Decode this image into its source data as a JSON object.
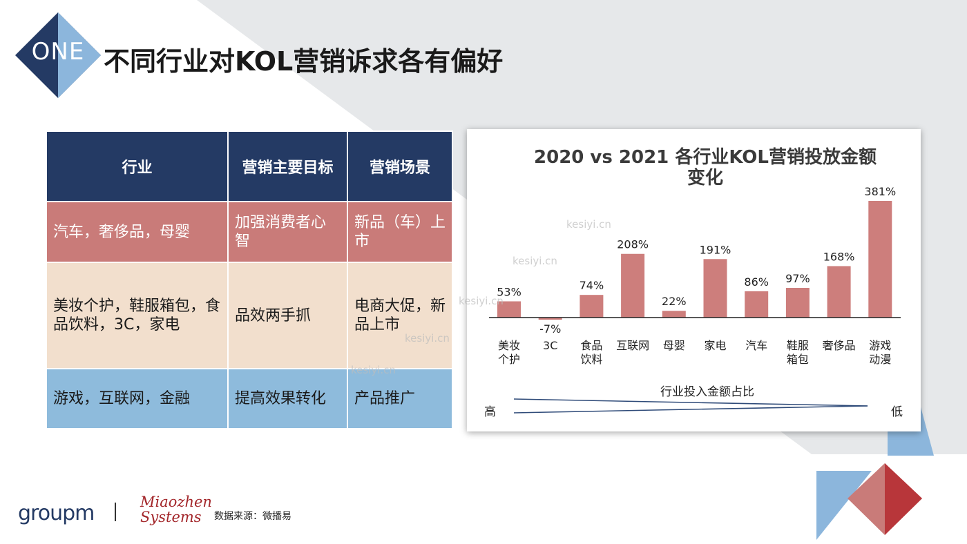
{
  "header": {
    "badge": "ONE",
    "title": "不同行业对KOL营销诉求各有偏好"
  },
  "table": {
    "headers": [
      "行业",
      "营销主要目标",
      "营销场景"
    ],
    "rows": [
      [
        "汽车，奢侈品，母婴",
        "加强消费者心智",
        "新品（车）上市"
      ],
      [
        "美妆个护，鞋服箱包，食品饮料，3C，家电",
        "品效两手抓",
        "电商大促，新品上市"
      ],
      [
        "游戏，互联网，金融",
        "提高效果转化",
        "产品推广"
      ]
    ]
  },
  "chart_data": {
    "type": "bar",
    "title": "2020 vs 2021 各行业KOL营销投放金额变化",
    "categories": [
      "美妆\n个护",
      "3C",
      "食品\n饮料",
      "互联网",
      "母婴",
      "家电",
      "汽车",
      "鞋服\n箱包",
      "奢侈品",
      "游戏\n动漫"
    ],
    "values": [
      53,
      -7,
      74,
      208,
      22,
      191,
      86,
      97,
      168,
      381
    ],
    "data_labels": [
      "53%",
      "-7%",
      "74%",
      "208%",
      "22%",
      "191%",
      "86%",
      "97%",
      "168%",
      "381%"
    ],
    "unit": "%",
    "ylim": [
      -10,
      381
    ],
    "bar_color": "#cd7e7c",
    "gridlines": false,
    "trend_label": "行业投入金额占比",
    "trend_high": "高",
    "trend_low": "低"
  },
  "footer": {
    "logo_groupm": "groupm",
    "logo_mz_line1": "Miaozhen",
    "logo_mz_line2": "Systems",
    "source": "数据来源：微播易"
  },
  "watermark": "kesiyi.cn",
  "colors": {
    "navy": "#243a64",
    "rose": "#c97b79",
    "peach": "#f2dfcd",
    "sky": "#8ebbdc",
    "light_blue": "#8cb6dc",
    "red": "#b8363a"
  }
}
